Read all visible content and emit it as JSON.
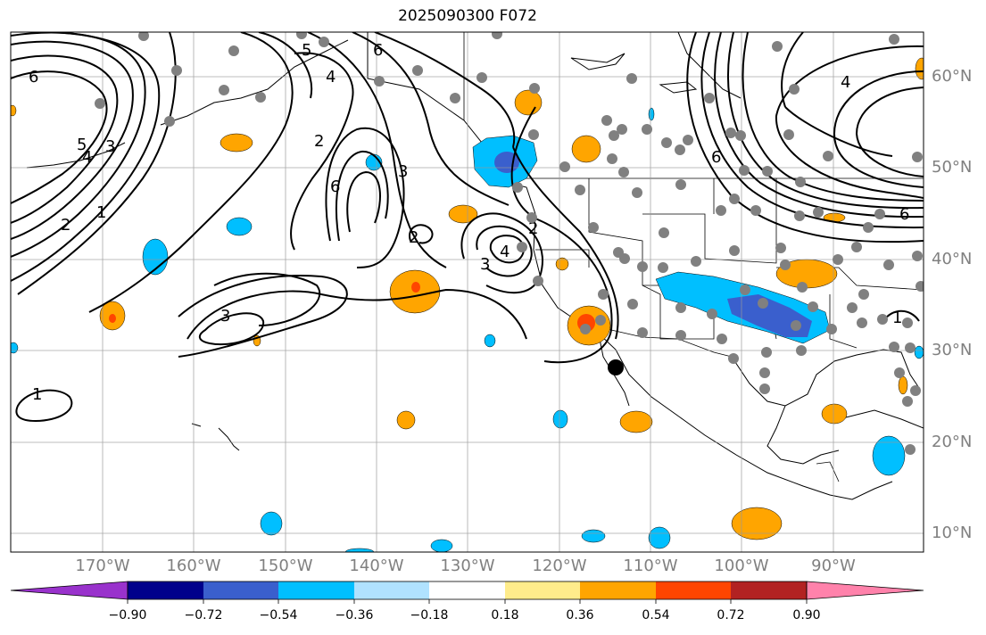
{
  "title": "2025090300 F072",
  "lon_labels": [
    "170°W",
    "160°W",
    "150°W",
    "140°W",
    "130°W",
    "120°W",
    "110°W",
    "100°W",
    "90°W"
  ],
  "lat_labels": [
    "60°N",
    "50°N",
    "40°N",
    "30°N",
    "20°N",
    "10°N"
  ],
  "contour_labels": [
    "6",
    "5",
    "4",
    "3",
    "2",
    "1",
    "6",
    "2",
    "5",
    "4",
    "6",
    "3",
    "2",
    "2",
    "4",
    "3",
    "3",
    "1",
    "6",
    "4",
    "1",
    "6"
  ],
  "colorbar": {
    "ticks": [
      "−0.90",
      "−0.72",
      "−0.54",
      "−0.36",
      "−0.18",
      "0.18",
      "0.36",
      "0.54",
      "0.72",
      "0.90"
    ],
    "colors": [
      "#9932cc",
      "#00008b",
      "#3a5fcd",
      "#00bfff",
      "#b0e2ff",
      "#ffffff",
      "#ffec8b",
      "#ffa500",
      "#ff4500",
      "#b22222",
      "#ff82ab"
    ]
  }
}
